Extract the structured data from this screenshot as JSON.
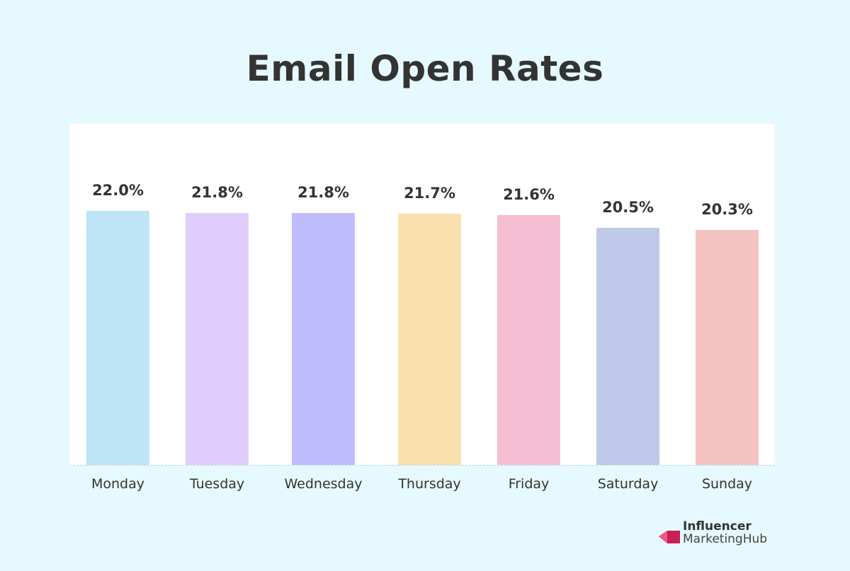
{
  "chart_data": {
    "type": "bar",
    "title": "Email Open Rates",
    "categories": [
      "Monday",
      "Tuesday",
      "Wednesday",
      "Thursday",
      "Friday",
      "Saturday",
      "Sunday"
    ],
    "values": [
      22.0,
      21.8,
      21.8,
      21.7,
      21.6,
      20.5,
      20.3
    ],
    "data_labels": [
      "22.0%",
      "21.8%",
      "21.8%",
      "21.7%",
      "21.6%",
      "20.5%",
      "20.3%"
    ],
    "colors": [
      "#bde5f6",
      "#e0cdfb",
      "#bebcfb",
      "#f9e0ad",
      "#f5bdd1",
      "#c0c9ea",
      "#f5c2c2"
    ],
    "ylim": [
      0,
      29.5
    ],
    "grid": false,
    "xlabel": "",
    "ylabel": ""
  },
  "logo": {
    "line1": "Influencer",
    "line2": "MarketingHub",
    "color": "#e8336d"
  }
}
